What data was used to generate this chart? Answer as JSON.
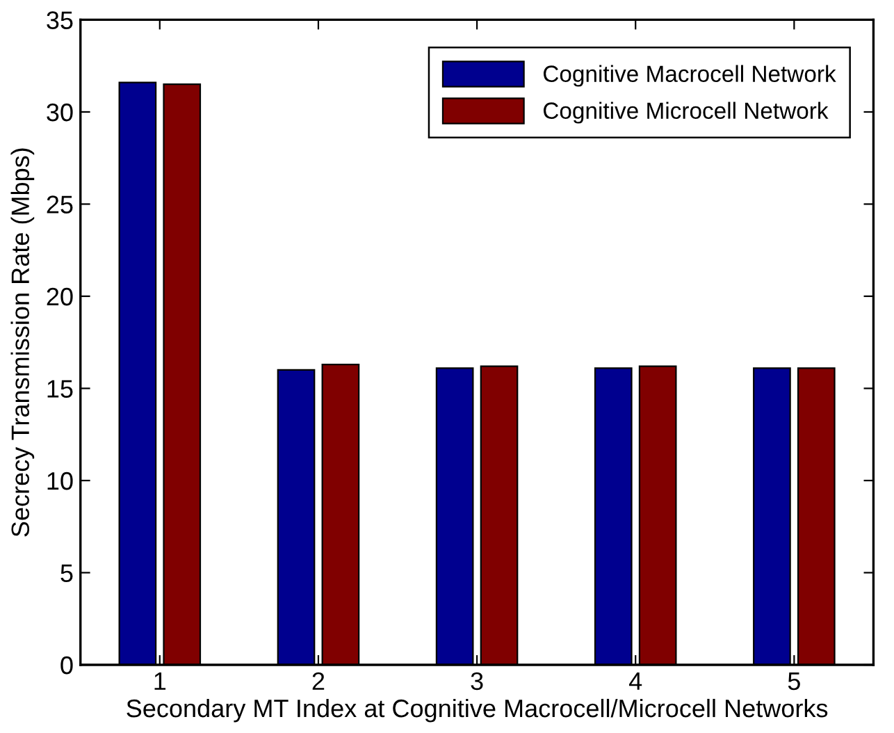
{
  "chart_data": {
    "type": "bar",
    "xlabel": "Secondary MT Index at Cognitive Macrocell/Microcell Networks",
    "ylabel": "Secrecy Transmission Rate (Mbps)",
    "categories": [
      "1",
      "2",
      "3",
      "4",
      "5"
    ],
    "series": [
      {
        "name": "Cognitive Macrocell Network",
        "color": "#00008f",
        "values": [
          31.6,
          16.0,
          16.1,
          16.1,
          16.1
        ]
      },
      {
        "name": "Cognitive Microcell Network",
        "color": "#800000",
        "values": [
          31.5,
          16.3,
          16.2,
          16.2,
          16.1
        ]
      }
    ],
    "ylim": [
      0,
      35
    ],
    "yticks": [
      0,
      5,
      10,
      15,
      20,
      25,
      30,
      35
    ],
    "legend": "top right",
    "grid": false
  }
}
